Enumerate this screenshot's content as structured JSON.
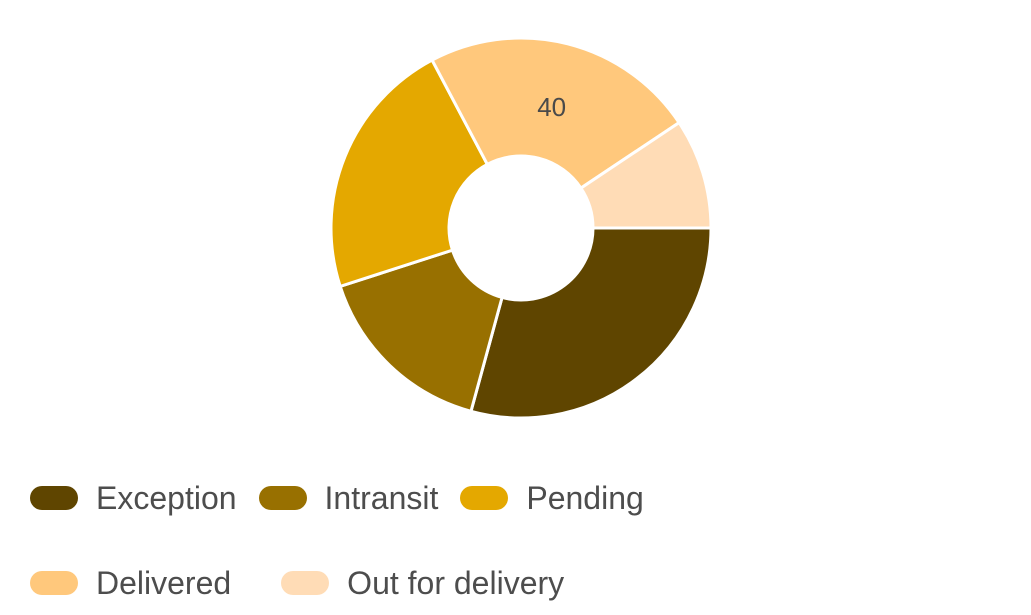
{
  "chart_data": {
    "type": "pie",
    "variant": "donut",
    "title": "",
    "categories": [
      "Exception",
      "Intransit",
      "Pending",
      "Delivered",
      "Out for delivery"
    ],
    "values": [
      50,
      27,
      38,
      40,
      16
    ],
    "shown_data_labels": [
      "40"
    ],
    "colors": [
      "#5f4500",
      "#987000",
      "#e4a800",
      "#ffc87c",
      "#ffdcb6"
    ],
    "legend_placement": "bottom",
    "legend": [
      {
        "label": "Exception",
        "color": "#5f4500"
      },
      {
        "label": "Intransit",
        "color": "#987000"
      },
      {
        "label": "Pending",
        "color": "#e4a800"
      },
      {
        "label": "Delivered",
        "color": "#ffc87c"
      },
      {
        "label": "Out for delivery",
        "color": "#ffdcb6"
      }
    ]
  }
}
